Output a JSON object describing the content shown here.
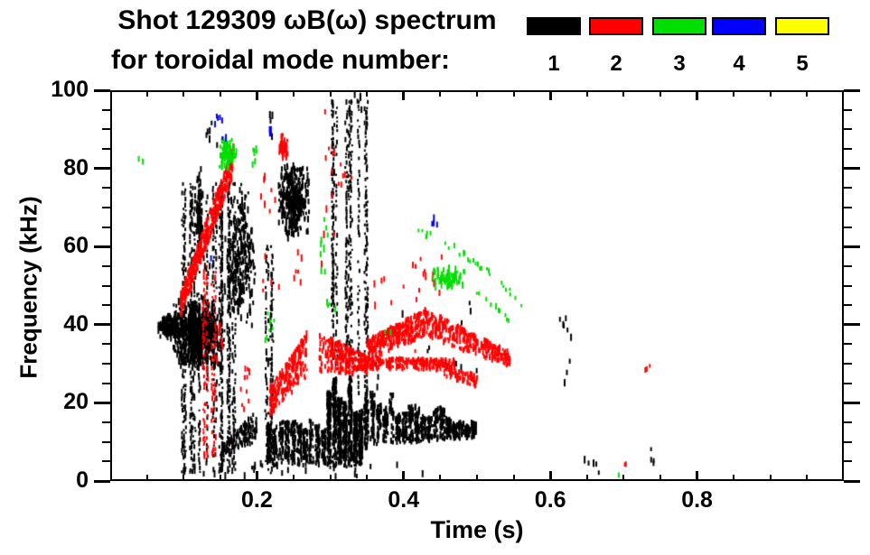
{
  "title": {
    "line1": "Shot 129309 ωB(ω) spectrum",
    "line2": "for toroidal mode number:"
  },
  "legend": {
    "entries": [
      {
        "label": "1",
        "color": "#000000"
      },
      {
        "label": "2",
        "color": "#ff0000"
      },
      {
        "label": "3",
        "color": "#00df00"
      },
      {
        "label": "4",
        "color": "#0000ff"
      },
      {
        "label": "5",
        "color": "#ffff00"
      }
    ]
  },
  "chart_data": {
    "type": "scatter",
    "title": "Shot 129309 ωB(ω) spectrum for toroidal mode number: 1-5",
    "xlabel": "Time (s)",
    "ylabel": "Frequency (kHz)",
    "xlim": [
      0,
      1
    ],
    "ylim": [
      0,
      100
    ],
    "grid": false,
    "x_major_ticks": [
      0.2,
      0.4,
      0.6,
      0.8
    ],
    "x_tick_labels": [
      "0.2",
      "0.4",
      "0.6",
      "0.8"
    ],
    "x_minor_step": 0.05,
    "y_major_ticks": [
      0,
      20,
      40,
      60,
      80,
      100
    ],
    "y_tick_labels": [
      "0",
      "20",
      "40",
      "60",
      "80",
      "100"
    ],
    "y_minor_step": 5,
    "legend_position": "top",
    "series": [
      {
        "name": "1",
        "color": "#000000",
        "clusters": [
          {
            "type": "blob",
            "t": [
              0.064,
              0.105
            ],
            "f": [
              36,
              43
            ],
            "n": 170
          },
          {
            "type": "blob",
            "t": [
              0.083,
              0.158
            ],
            "f": [
              28,
              48
            ],
            "n": 600
          },
          {
            "type": "streaks",
            "t": [
              0.098,
              0.17
            ],
            "f": [
              2,
              76
            ],
            "n": 20
          },
          {
            "type": "blob",
            "t": [
              0.117,
              0.127
            ],
            "f": [
              54,
              82
            ],
            "n": 70
          },
          {
            "type": "dashes",
            "t": [
              0.1,
              0.175
            ],
            "f": [
              48,
              70
            ],
            "n": 28
          },
          {
            "type": "dashes",
            "t": [
              0.128,
              0.148
            ],
            "f": [
              85,
              92
            ],
            "n": 6
          },
          {
            "type": "blob",
            "t": [
              0.158,
              0.2
            ],
            "f": [
              38,
              76
            ],
            "n": 260
          },
          {
            "type": "band",
            "t": [
              0.152,
              0.2
            ],
            "f_lo": [
              5,
              10
            ],
            "f_hi": [
              9,
              18
            ],
            "n": 140
          },
          {
            "type": "dashes",
            "t": [
              0.09,
              0.21
            ],
            "f": [
              1,
              5
            ],
            "n": 14
          },
          {
            "type": "streaks",
            "t": [
              0.212,
              0.222
            ],
            "f": [
              2,
              60
            ],
            "n": 5
          },
          {
            "type": "dashes",
            "t": [
              0.213,
              0.23
            ],
            "f": [
              88,
              94
            ],
            "n": 5
          },
          {
            "type": "blob",
            "t": [
              0.227,
              0.272
            ],
            "f": [
              62,
              82
            ],
            "n": 330
          },
          {
            "type": "band",
            "t": [
              0.212,
              0.295
            ],
            "f_lo": [
              4,
              4
            ],
            "f_hi": [
              16,
              19
            ],
            "n": 450,
            "col": 10
          },
          {
            "type": "band",
            "t": [
              0.295,
              0.345
            ],
            "f_lo": [
              3,
              4
            ],
            "f_hi": [
              30,
              26
            ],
            "n": 750,
            "col": 7
          },
          {
            "type": "band",
            "t": [
              0.345,
              0.5
            ],
            "f_lo": [
              9,
              11
            ],
            "f_hi": [
              25,
              16
            ],
            "n": 750,
            "col": 18
          },
          {
            "type": "streaks",
            "t": [
              0.302,
              0.332
            ],
            "f": [
              30,
              97
            ],
            "n": 9
          },
          {
            "type": "streaks",
            "t": [
              0.338,
              0.352
            ],
            "f": [
              8,
              97
            ],
            "n": 4
          },
          {
            "type": "dashes",
            "t": [
              0.333,
              0.347
            ],
            "f": [
              94,
              99
            ],
            "n": 5
          },
          {
            "type": "dashes",
            "t": [
              0.36,
              0.5
            ],
            "f": [
              24,
              46
            ],
            "n": 16
          },
          {
            "type": "dashes",
            "t": [
              0.22,
              0.47
            ],
            "f": [
              1,
              6
            ],
            "n": 14
          },
          {
            "type": "dashes",
            "t": [
              0.613,
              0.632
            ],
            "f": [
              25,
              43
            ],
            "n": 9
          },
          {
            "type": "dashes",
            "t": [
              0.64,
              0.667
            ],
            "f": [
              1.5,
              5.5
            ],
            "n": 5
          },
          {
            "type": "dashes",
            "t": [
              0.735,
              0.743
            ],
            "f": [
              4,
              10
            ],
            "n": 4
          }
        ]
      },
      {
        "name": "2",
        "color": "#ff0000",
        "clusters": [
          {
            "type": "band",
            "t": [
              0.096,
              0.168
            ],
            "f_lo": [
              42,
              78
            ],
            "f_hi": [
              48,
              86
            ],
            "n": 420
          },
          {
            "type": "streaks",
            "t": [
              0.127,
              0.143
            ],
            "f": [
              5,
              55
            ],
            "n": 5
          },
          {
            "type": "dashes",
            "t": [
              0.138,
              0.155
            ],
            "f": [
              30,
              40
            ],
            "n": 8
          },
          {
            "type": "dashes",
            "t": [
              0.175,
              0.19
            ],
            "f": [
              18,
              29
            ],
            "n": 10
          },
          {
            "type": "dashes",
            "t": [
              0.205,
              0.232
            ],
            "f": [
              48,
              80
            ],
            "n": 12
          },
          {
            "type": "blob",
            "t": [
              0.229,
              0.243
            ],
            "f": [
              82,
              89
            ],
            "n": 40
          },
          {
            "type": "band",
            "t": [
              0.218,
              0.268
            ],
            "f_lo": [
              17,
              26
            ],
            "f_hi": [
              24,
              38
            ],
            "n": 220
          },
          {
            "type": "dashes",
            "t": [
              0.245,
              0.262
            ],
            "f": [
              50,
              60
            ],
            "n": 6
          },
          {
            "type": "band",
            "t": [
              0.285,
              0.35
            ],
            "f_lo": [
              28,
              27
            ],
            "f_hi": [
              38,
              32
            ],
            "n": 240
          },
          {
            "type": "dashes",
            "t": [
              0.288,
              0.306
            ],
            "f": [
              55,
              97
            ],
            "n": 10
          },
          {
            "type": "dashes",
            "t": [
              0.297,
              0.33
            ],
            "f": [
              74,
              86
            ],
            "n": 8
          },
          {
            "type": "band",
            "t": [
              0.35,
              0.43
            ],
            "f_lo": [
              31,
              37
            ],
            "f_hi": [
              36,
              44
            ],
            "n": 320
          },
          {
            "type": "band",
            "t": [
              0.43,
              0.545
            ],
            "f_lo": [
              37,
              29
            ],
            "f_hi": [
              44,
              33
            ],
            "n": 300
          },
          {
            "type": "band",
            "t": [
              0.345,
              0.47
            ],
            "f_lo": [
              28.5,
              28.5
            ],
            "f_hi": [
              31.5,
              31
            ],
            "n": 220
          },
          {
            "type": "band",
            "t": [
              0.455,
              0.5
            ],
            "f_lo": [
              27,
              24
            ],
            "f_hi": [
              30,
              27
            ],
            "n": 70
          },
          {
            "type": "dashes",
            "t": [
              0.41,
              0.452
            ],
            "f": [
              33,
              58
            ],
            "n": 16
          },
          {
            "type": "dashes",
            "t": [
              0.36,
              0.4
            ],
            "f": [
              44,
              52
            ],
            "n": 6
          },
          {
            "type": "dashes",
            "t": [
              0.727,
              0.736
            ],
            "f": [
              28,
              31
            ],
            "n": 3
          },
          {
            "type": "dashes",
            "t": [
              0.7,
              0.707
            ],
            "f": [
              3,
              4.5
            ],
            "n": 2
          }
        ]
      },
      {
        "name": "3",
        "color": "#00df00",
        "clusters": [
          {
            "type": "dashes",
            "t": [
              0.037,
              0.045
            ],
            "f": [
              80,
              83
            ],
            "n": 2
          },
          {
            "type": "blob",
            "t": [
              0.146,
              0.172
            ],
            "f": [
              79,
              88
            ],
            "n": 90
          },
          {
            "type": "dashes",
            "t": [
              0.188,
              0.2
            ],
            "f": [
              80,
              86
            ],
            "n": 6
          },
          {
            "type": "dashes",
            "t": [
              0.21,
              0.224
            ],
            "f": [
              36,
              43
            ],
            "n": 7
          },
          {
            "type": "dashes",
            "t": [
              0.283,
              0.302
            ],
            "f": [
              52,
              67
            ],
            "n": 9
          },
          {
            "type": "dashes",
            "t": [
              0.295,
              0.318
            ],
            "f": [
              43,
              49
            ],
            "n": 4
          },
          {
            "type": "dashes",
            "t": [
              0.374,
              0.383
            ],
            "f": [
              38,
              41
            ],
            "n": 2
          },
          {
            "type": "blob",
            "t": [
              0.437,
              0.487
            ],
            "f": [
              49,
              55
            ],
            "n": 80
          },
          {
            "type": "arc",
            "p0": [
              0.418,
              64
            ],
            "p1": [
              0.565,
              44.5
            ],
            "sag": 5,
            "n": 30
          },
          {
            "type": "arc",
            "p0": [
              0.497,
              48.5
            ],
            "p1": [
              0.546,
              40
            ],
            "sag": 2,
            "n": 12
          },
          {
            "type": "dashes",
            "t": [
              0.688,
              0.694
            ],
            "f": [
              1.5,
              3
            ],
            "n": 1
          }
        ]
      },
      {
        "name": "4",
        "color": "#0000ff",
        "clusters": [
          {
            "type": "dashes",
            "t": [
              0.142,
              0.158
            ],
            "f": [
              87,
              94
            ],
            "n": 7
          },
          {
            "type": "dashes",
            "t": [
              0.137,
              0.142
            ],
            "f": [
              55,
              57
            ],
            "n": 1
          },
          {
            "type": "dashes",
            "t": [
              0.215,
              0.223
            ],
            "f": [
              88,
              94
            ],
            "n": 3
          },
          {
            "type": "dashes",
            "t": [
              0.435,
              0.453
            ],
            "f": [
              65.5,
              68.5
            ],
            "n": 4
          }
        ]
      },
      {
        "name": "5",
        "color": "#ffff00",
        "clusters": []
      }
    ]
  }
}
